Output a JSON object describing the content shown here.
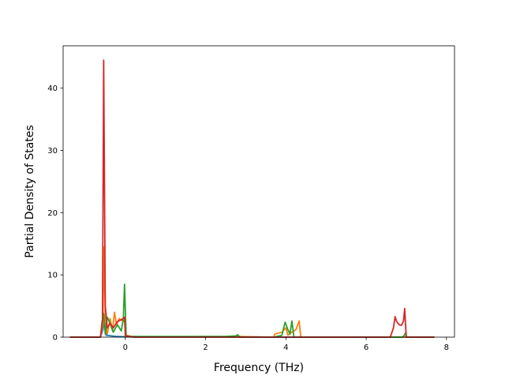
{
  "chart_data": {
    "type": "line",
    "title": "",
    "xlabel": "Frequency (THz)",
    "ylabel": "Partial Density of States",
    "xlim": [
      -1.55,
      8.2
    ],
    "ylim": [
      0,
      46.8
    ],
    "xticks": [
      0,
      2,
      4,
      6,
      8
    ],
    "yticks": [
      0,
      10,
      20,
      30,
      40
    ],
    "grid": false,
    "legend": "none",
    "series": [
      {
        "color": "#1f77b4",
        "points": [
          [
            -1.38,
            0
          ],
          [
            -0.62,
            0
          ],
          [
            -0.56,
            1.2
          ],
          [
            -0.52,
            2.5
          ],
          [
            -0.48,
            0.3
          ],
          [
            -0.2,
            0.1
          ],
          [
            0.2,
            0.05
          ],
          [
            2.8,
            0.05
          ],
          [
            3.7,
            0
          ],
          [
            7.7,
            0
          ]
        ]
      },
      {
        "color": "#ff7f0e",
        "points": [
          [
            -1.38,
            0
          ],
          [
            -0.62,
            0
          ],
          [
            -0.56,
            2.0
          ],
          [
            -0.53,
            14.5
          ],
          [
            -0.5,
            3.0
          ],
          [
            -0.45,
            0.5
          ],
          [
            -0.38,
            3.0
          ],
          [
            -0.32,
            1.0
          ],
          [
            -0.27,
            4.0
          ],
          [
            -0.22,
            2.0
          ],
          [
            -0.15,
            3.0
          ],
          [
            -0.05,
            2.5
          ],
          [
            -0.02,
            3.0
          ],
          [
            0.02,
            0.3
          ],
          [
            0.2,
            0.05
          ],
          [
            2.8,
            0.1
          ],
          [
            3.7,
            0
          ],
          [
            3.72,
            0.5
          ],
          [
            3.9,
            0.8
          ],
          [
            4.0,
            1.5
          ],
          [
            4.05,
            0.3
          ],
          [
            4.15,
            0.8
          ],
          [
            4.25,
            1.2
          ],
          [
            4.33,
            2.6
          ],
          [
            4.37,
            0
          ],
          [
            7.7,
            0
          ]
        ]
      },
      {
        "color": "#2ca02c",
        "points": [
          [
            -1.38,
            0
          ],
          [
            -0.62,
            0
          ],
          [
            -0.58,
            2.5
          ],
          [
            -0.54,
            3.8
          ],
          [
            -0.5,
            0.5
          ],
          [
            -0.45,
            3.2
          ],
          [
            -0.4,
            2.5
          ],
          [
            -0.3,
            0.8
          ],
          [
            -0.2,
            2.0
          ],
          [
            -0.1,
            1.0
          ],
          [
            -0.05,
            3.0
          ],
          [
            -0.02,
            8.5
          ],
          [
            0.02,
            0.2
          ],
          [
            0.2,
            0.1
          ],
          [
            2.5,
            0.1
          ],
          [
            2.75,
            0.2
          ],
          [
            2.8,
            0.4
          ],
          [
            2.85,
            0
          ],
          [
            3.7,
            0
          ],
          [
            3.9,
            0.3
          ],
          [
            3.98,
            2.4
          ],
          [
            4.05,
            1.2
          ],
          [
            4.1,
            0.5
          ],
          [
            4.15,
            2.6
          ],
          [
            4.2,
            0
          ],
          [
            6.9,
            0
          ],
          [
            6.95,
            0.3
          ],
          [
            6.98,
            0.7
          ],
          [
            7.0,
            0
          ],
          [
            7.7,
            0
          ]
        ]
      },
      {
        "color": "#d62728",
        "points": [
          [
            -1.38,
            0
          ],
          [
            -0.62,
            0
          ],
          [
            -0.57,
            2.5
          ],
          [
            -0.54,
            44.5
          ],
          [
            -0.5,
            5.0
          ],
          [
            -0.45,
            1.5
          ],
          [
            -0.38,
            2.2
          ],
          [
            -0.3,
            1.5
          ],
          [
            -0.2,
            2.5
          ],
          [
            -0.1,
            2.8
          ],
          [
            -0.02,
            3.2
          ],
          [
            0.0,
            0.2
          ],
          [
            0.2,
            0
          ],
          [
            6.6,
            0
          ],
          [
            6.68,
            1.5
          ],
          [
            6.72,
            3.3
          ],
          [
            6.76,
            2.5
          ],
          [
            6.82,
            2.0
          ],
          [
            6.88,
            1.9
          ],
          [
            6.93,
            2.6
          ],
          [
            6.96,
            4.6
          ],
          [
            6.98,
            2.0
          ],
          [
            7.0,
            0
          ],
          [
            7.7,
            0
          ]
        ]
      }
    ]
  }
}
